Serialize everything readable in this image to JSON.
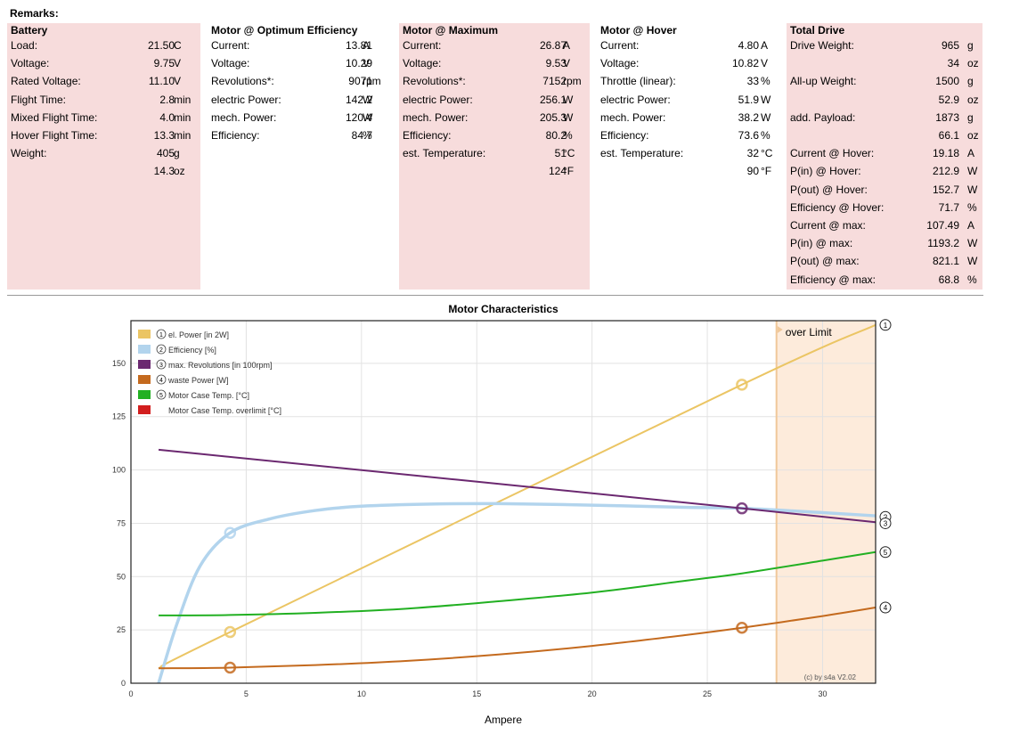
{
  "remarks_label": "Remarks:",
  "panels": [
    {
      "title": "Battery",
      "pink": true,
      "rows": [
        {
          "label": "Load:",
          "value": "21.50",
          "unit": "C"
        },
        {
          "label": "Voltage:",
          "value": "9.75",
          "unit": "V"
        },
        {
          "label": "Rated Voltage:",
          "value": "11.10",
          "unit": "V"
        },
        {
          "label": "Flight Time:",
          "value": "2.8",
          "unit": "min"
        },
        {
          "label": "Mixed Flight Time:",
          "value": "4.0",
          "unit": "min"
        },
        {
          "label": "Hover Flight Time:",
          "value": "13.3",
          "unit": "min"
        },
        {
          "label": "Weight:",
          "value": "405",
          "unit": "g"
        },
        {
          "label": "",
          "value": "14.3",
          "unit": "oz"
        }
      ]
    },
    {
      "title": "Motor @ Optimum Efficiency",
      "pink": false,
      "rows": [
        {
          "label": "Current:",
          "value": "13.81",
          "unit": "A"
        },
        {
          "label": "Voltage:",
          "value": "10.29",
          "unit": "V"
        },
        {
          "label": "Revolutions*:",
          "value": "9071",
          "unit": "rpm"
        },
        {
          "label": "electric Power:",
          "value": "142.2",
          "unit": "W"
        },
        {
          "label": "mech. Power:",
          "value": "120.4",
          "unit": "W"
        },
        {
          "label": "Efficiency:",
          "value": "84.7",
          "unit": "%"
        }
      ]
    },
    {
      "title": "Motor @ Maximum",
      "pink": true,
      "rows": [
        {
          "label": "Current:",
          "value": "26.87",
          "unit": "A"
        },
        {
          "label": "Voltage:",
          "value": "9.53",
          "unit": "V"
        },
        {
          "label": "Revolutions*:",
          "value": "7152",
          "unit": "rpm"
        },
        {
          "label": "electric Power:",
          "value": "256.1",
          "unit": "W"
        },
        {
          "label": "mech. Power:",
          "value": "205.3",
          "unit": "W"
        },
        {
          "label": "Efficiency:",
          "value": "80.2",
          "unit": "%"
        },
        {
          "label": "est. Temperature:",
          "value": "51",
          "unit": "°C"
        },
        {
          "label": "",
          "value": "124",
          "unit": "°F"
        }
      ]
    },
    {
      "title": "Motor @ Hover",
      "pink": false,
      "rows": [
        {
          "label": "Current:",
          "value": "4.80",
          "unit": "A"
        },
        {
          "label": "Voltage:",
          "value": "10.82",
          "unit": "V"
        },
        {
          "label": "Throttle (linear):",
          "value": "33",
          "unit": "%"
        },
        {
          "label": "electric Power:",
          "value": "51.9",
          "unit": "W"
        },
        {
          "label": "mech. Power:",
          "value": "38.2",
          "unit": "W"
        },
        {
          "label": "Efficiency:",
          "value": "73.6",
          "unit": "%"
        },
        {
          "label": "est. Temperature:",
          "value": "32",
          "unit": "°C"
        },
        {
          "label": "",
          "value": "90",
          "unit": "°F"
        }
      ]
    },
    {
      "title": "Total Drive",
      "pink": true,
      "rows": [
        {
          "label": "Drive Weight:",
          "value": "965",
          "unit": "g"
        },
        {
          "label": "",
          "value": "34",
          "unit": "oz"
        },
        {
          "label": "All-up Weight:",
          "value": "1500",
          "unit": "g"
        },
        {
          "label": "",
          "value": "52.9",
          "unit": "oz"
        },
        {
          "label": "add. Payload:",
          "value": "1873",
          "unit": "g"
        },
        {
          "label": "",
          "value": "66.1",
          "unit": "oz"
        },
        {
          "label": "Current @ Hover:",
          "value": "19.18",
          "unit": "A"
        },
        {
          "label": "P(in) @ Hover:",
          "value": "212.9",
          "unit": "W"
        },
        {
          "label": "P(out) @ Hover:",
          "value": "152.7",
          "unit": "W"
        },
        {
          "label": "Efficiency @ Hover:",
          "value": "71.7",
          "unit": "%"
        },
        {
          "label": "Current @ max:",
          "value": "107.49",
          "unit": "A"
        },
        {
          "label": "P(in) @ max:",
          "value": "1193.2",
          "unit": "W"
        },
        {
          "label": "P(out) @ max:",
          "value": "821.1",
          "unit": "W"
        },
        {
          "label": "Efficiency @ max:",
          "value": "68.8",
          "unit": "%"
        }
      ]
    }
  ],
  "colors": {
    "panel_pink": "#f7dcdc",
    "over_limit_fill": "#fdebdb",
    "over_limit_line": "#f0c89a"
  },
  "chart_data": {
    "type": "line",
    "title": "Motor Characteristics",
    "xlabel": "Ampere",
    "xlim": [
      0,
      32.3
    ],
    "ylim": [
      0,
      170
    ],
    "xticks": [
      0,
      5,
      10,
      15,
      20,
      25,
      30
    ],
    "yticks": [
      0,
      25,
      50,
      75,
      100,
      125,
      150
    ],
    "over_limit_start": 28,
    "over_limit_label": "over Limit",
    "credit": "(c) by s4a    V2.02",
    "grid": true,
    "legend_position": "top-left",
    "legend": [
      {
        "marker": "①",
        "label": "el. Power [in 2W]",
        "color": "#ebc564"
      },
      {
        "marker": "②",
        "label": "Efficiency [%]",
        "color": "#b2d4ed"
      },
      {
        "marker": "③",
        "label": "max. Revolutions [in 100rpm]",
        "color": "#6b2870"
      },
      {
        "marker": "④",
        "label": "waste Power [W]",
        "color": "#c46a1e"
      },
      {
        "marker": "⑤",
        "label": "Motor Case Temp. [°C]",
        "color": "#22b022"
      },
      {
        "marker": "",
        "label": "Motor Case Temp. overlimit [°C]",
        "color": "#d21e1e"
      }
    ],
    "series": [
      {
        "name": "el. Power [in 2W]",
        "marker": "①",
        "color": "#ebc564",
        "points": [
          [
            1.2,
            7
          ],
          [
            4.3,
            24
          ],
          [
            26.5,
            140
          ],
          [
            32.3,
            168
          ]
        ],
        "dots": [
          [
            4.3,
            24
          ],
          [
            26.5,
            140
          ]
        ]
      },
      {
        "name": "Efficiency [%]",
        "marker": "②",
        "color": "#b2d4ed",
        "points": [
          [
            1.2,
            0
          ],
          [
            2,
            28
          ],
          [
            3,
            55
          ],
          [
            4.3,
            70.5
          ],
          [
            6,
            77
          ],
          [
            8,
            81
          ],
          [
            10,
            83
          ],
          [
            13,
            84
          ],
          [
            16,
            84.2
          ],
          [
            20,
            83.5
          ],
          [
            24,
            82.5
          ],
          [
            26.5,
            82
          ],
          [
            30,
            80
          ],
          [
            32.3,
            78.5
          ]
        ],
        "dots": [
          [
            4.3,
            70.5
          ]
        ]
      },
      {
        "name": "max. Revolutions [in 100rpm]",
        "marker": "③",
        "color": "#6b2870",
        "points": [
          [
            1.2,
            109.5
          ],
          [
            26.5,
            82
          ],
          [
            32.3,
            75.5
          ]
        ],
        "dots": [
          [
            26.5,
            82
          ]
        ]
      },
      {
        "name": "waste Power [W]",
        "marker": "④",
        "color": "#c46a1e",
        "points": [
          [
            1.2,
            7
          ],
          [
            4.3,
            7.3
          ],
          [
            8,
            8.5
          ],
          [
            12,
            10.5
          ],
          [
            16,
            13.5
          ],
          [
            20,
            17.5
          ],
          [
            24,
            22.5
          ],
          [
            26.5,
            26
          ],
          [
            30,
            31.5
          ],
          [
            32.3,
            35.5
          ]
        ],
        "dots": [
          [
            4.3,
            7.3
          ],
          [
            26.5,
            26
          ]
        ]
      },
      {
        "name": "Motor Case Temp. [°C]",
        "marker": "⑤",
        "color": "#22b022",
        "points": [
          [
            1.2,
            31.8
          ],
          [
            4.3,
            32
          ],
          [
            8,
            33
          ],
          [
            12,
            35
          ],
          [
            16,
            38.5
          ],
          [
            20,
            42.5
          ],
          [
            24,
            48
          ],
          [
            26.5,
            51.5
          ],
          [
            30,
            57.5
          ],
          [
            32.3,
            61.5
          ]
        ],
        "dots": []
      }
    ],
    "right_markers": [
      {
        "marker": "①",
        "y": 168
      },
      {
        "marker": "②",
        "y": 78
      },
      {
        "marker": "③",
        "y": 75
      },
      {
        "marker": "⑤",
        "y": 61.5
      },
      {
        "marker": "④",
        "y": 35.5
      }
    ]
  }
}
